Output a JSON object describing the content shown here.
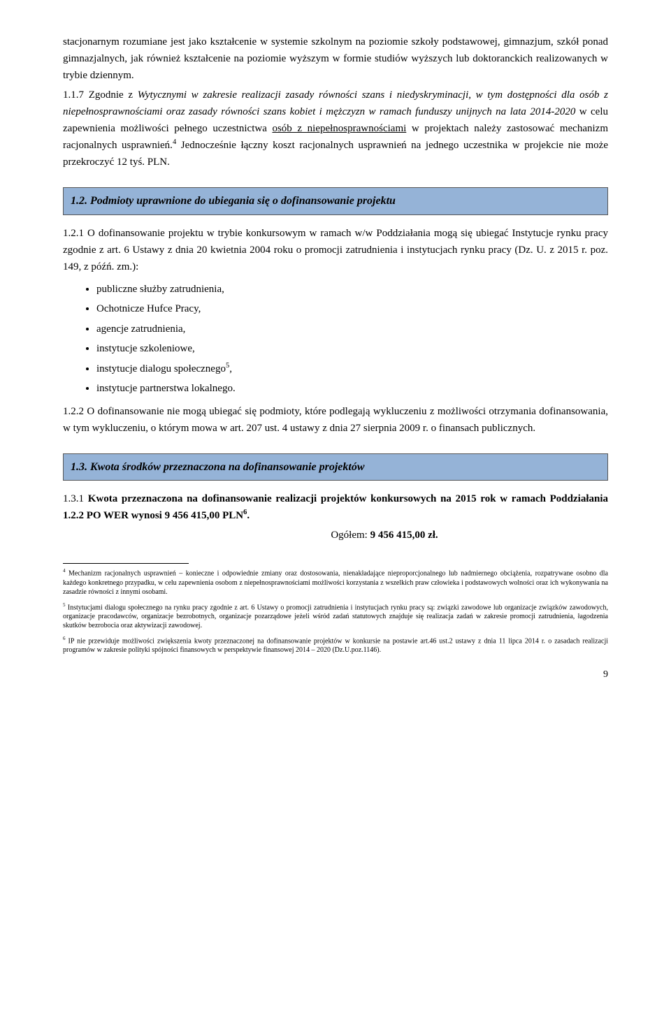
{
  "intro": {
    "p1": "stacjonarnym rozumiane jest jako kształcenie w systemie szkolnym na poziomie szkoły podstawowej, gimnazjum, szkół ponad gimnazjalnych, jak również kształcenie na poziomie wyższym w formie studiów wyższych lub doktoranckich realizowanych w trybie dziennym.",
    "p2_lead": "1.1.7 Zgodnie z ",
    "p2_italic1": "Wytycznymi w zakresie realizacji zasady równości szans i niedyskryminacji, w tym dostępności dla osób z niepełnosprawnościami oraz zasady równości szans kobiet i mężczyzn w ramach funduszy unijnych na lata 2014-2020",
    "p2_mid": " w celu zapewnienia możliwości pełnego uczestnictwa ",
    "p2_u": "osób z niepełnosprawnościami",
    "p2_end": " w projektach należy zastosować mechanizm racjonalnych usprawnień.",
    "p2_sup": "4",
    "p2_rest": " Jednocześnie łączny koszt racjonalnych usprawnień na jednego uczestnika w projekcie nie może przekroczyć 12 tyś. PLN."
  },
  "section12": {
    "header": "1.2. Podmioty uprawnione do ubiegania się o dofinansowanie projektu",
    "p1": "1.2.1 O dofinansowanie projektu w trybie konkursowym w ramach w/w Poddziałania mogą się ubiegać Instytucje rynku pracy zgodnie z art. 6 Ustawy z dnia 20 kwietnia 2004 roku o promocji zatrudnienia i instytucjach rynku pracy (Dz. U. z 2015 r. poz. 149, z późń. zm.):",
    "bullets": [
      "publiczne służby zatrudnienia,",
      "Ochotnicze Hufce Pracy,",
      "agencje zatrudnienia,",
      "instytucje szkoleniowe,"
    ],
    "bullet5_text": "instytucje dialogu społecznego",
    "bullet5_sup": "5",
    "bullet5_end": ",",
    "bullet6": "instytucje partnerstwa lokalnego.",
    "p2": "1.2.2 O dofinansowanie nie mogą ubiegać się podmioty, które podlegają wykluczeniu z możliwości otrzymania dofinansowania, w tym wykluczeniu, o którym mowa w art. 207 ust. 4 ustawy z dnia 27 sierpnia 2009 r. o finansach publicznych."
  },
  "section13": {
    "header": "1.3. Kwota środków przeznaczona na dofinansowanie projektów",
    "p1_lead": "1.3.1 ",
    "p1_bold": "Kwota przeznaczona na dofinansowanie realizacji projektów konkursowych na 2015 rok w ramach Poddziałania 1.2.2 PO WER wynosi 9 456 415,00 PLN",
    "p1_sup": "6",
    "p1_end": ".",
    "total_label": "Ogółem:  ",
    "total_value": "9 456 415,00 zł."
  },
  "footnotes": {
    "f4_sup": "4",
    "f4": " Mechanizm racjonalnych usprawnień – konieczne i odpowiednie zmiany oraz dostosowania, nienakładające nieproporcjonalnego lub nadmiernego obciążenia, rozpatrywane osobno dla każdego konkretnego przypadku, w celu zapewnienia osobom z niepełnosprawnościami możliwości korzystania z wszelkich praw człowieka i podstawowych wolności oraz ich wykonywania na zasadzie równości z innymi osobami.",
    "f5_sup": "5",
    "f5": " Instytucjami dialogu społecznego na rynku pracy zgodnie z art. 6 Ustawy o promocji zatrudnienia i instytucjach rynku pracy są: związki zawodowe lub organizacje związków zawodowych, organizacje pracodawców, organizacje bezrobotnych, organizacje pozarządowe jeżeli wśród zadań statutowych znajduje się realizacja zadań w zakresie promocji zatrudnienia, łagodzenia skutków bezrobocia oraz aktywizacji zawodowej.",
    "f6_sup": "6",
    "f6": " IP nie przewiduje możliwości zwiększenia kwoty przeznaczonej na dofinansowanie projektów w konkursie na postawie art.46 ust.2 ustawy z dnia 11 lipca 2014 r. o zasadach realizacji programów w zakresie polityki spójności finansowych w perspektywie finansowej 2014 – 2020 (Dz.U.poz.1146)."
  },
  "page_number": "9"
}
